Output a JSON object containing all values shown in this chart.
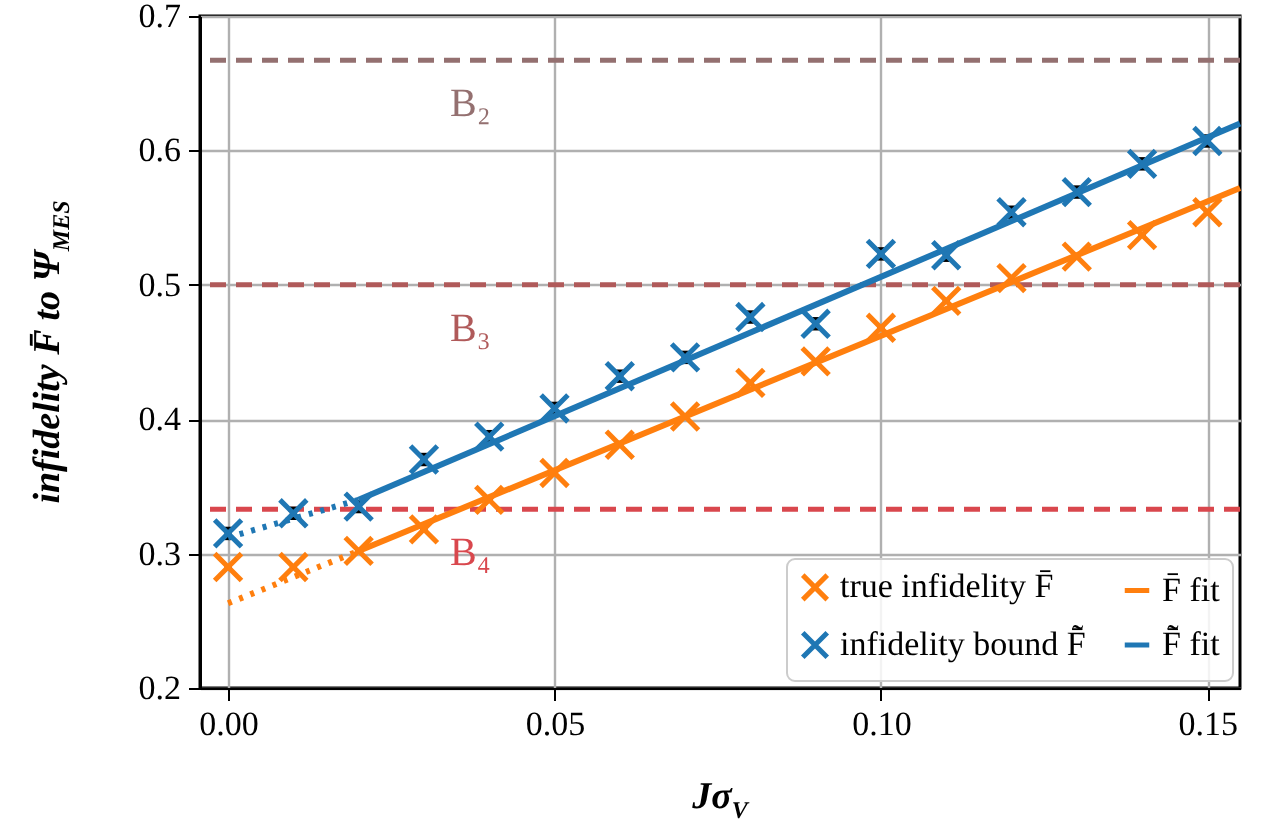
{
  "chart_data": {
    "type": "scatter",
    "xlabel": "Jσ$_{V}$",
    "ylabel": "infidelity F̄ to Ψ$_{MES}$",
    "xlim": [
      -0.0043,
      0.155
    ],
    "ylim": [
      0.2,
      0.7
    ],
    "xticks": [
      {
        "value": 0,
        "label": "0.00"
      },
      0.05,
      {
        "value": 0.1,
        "label": "0.10"
      },
      0.15
    ],
    "yticks": [
      0.2,
      0.3,
      0.4,
      0.5,
      0.6,
      0.7
    ],
    "grid": true,
    "legend": "bottom right",
    "marker": "cross",
    "series": [
      {
        "name": "true infidelity F̄",
        "color": "#ff7f0e",
        "x": [
          0,
          0.01,
          0.02,
          0.03,
          0.04,
          0.05,
          0.06,
          0.07,
          0.08,
          0.09,
          0.1,
          0.11,
          0.12,
          0.13,
          0.14,
          0.15
        ],
        "values": [
          0.29,
          0.29,
          0.302,
          0.318,
          0.34,
          0.36,
          0.381,
          0.402,
          0.427,
          0.443,
          0.468,
          0.488,
          0.505,
          0.521,
          0.537,
          0.554
        ],
        "errors": [
          0.002,
          0.002,
          0.002,
          0.002,
          0.002,
          0.002,
          0.002,
          0.002,
          0.002,
          0.002,
          0.002,
          0.002,
          0.002,
          0.002,
          0.002,
          0.002
        ]
      },
      {
        "name": "infidelity bound F̃̄",
        "color": "#1f77b4",
        "x": [
          0,
          0.01,
          0.02,
          0.03,
          0.04,
          0.05,
          0.06,
          0.07,
          0.08,
          0.09,
          0.1,
          0.11,
          0.12,
          0.13,
          0.14,
          0.15
        ],
        "values": [
          0.315,
          0.33,
          0.335,
          0.37,
          0.387,
          0.408,
          0.432,
          0.446,
          0.476,
          0.471,
          0.523,
          0.522,
          0.554,
          0.569,
          0.59,
          0.607
        ],
        "errors": [
          0.005,
          0.005,
          0.005,
          0.005,
          0.005,
          0.005,
          0.005,
          0.005,
          0.005,
          0.005,
          0.005,
          0.005,
          0.005,
          0.005,
          0.005,
          0.005
        ]
      },
      {
        "name": "F̄ fit",
        "type": "line",
        "marker": "none",
        "color": "#ff7f0e",
        "line_style": "solid",
        "x": [
          0.02,
          0.155
        ],
        "values": [
          0.302,
          0.572
        ]
      },
      {
        "name": "F̃̄ fit",
        "type": "line",
        "marker": "none",
        "color": "#1f77b4",
        "line_style": "solid",
        "x": [
          0.02,
          0.155
        ],
        "values": [
          0.34,
          0.62
        ]
      },
      {
        "type": "line",
        "marker": "none",
        "color": "#ff7f0e",
        "line_style": "dotted",
        "x": [
          0,
          0.02
        ],
        "values": [
          0.263,
          0.302
        ]
      },
      {
        "type": "line",
        "marker": "none",
        "color": "#1f77b4",
        "line_style": "dotted",
        "x": [
          0,
          0.02
        ],
        "values": [
          0.312,
          0.34
        ]
      }
    ],
    "ref_lines": [
      {
        "axis": "y",
        "value": 0.667,
        "label": "B₂",
        "color": "#947070",
        "line_style": "dashed"
      },
      {
        "axis": "y",
        "value": 0.5,
        "label": "B₃",
        "color": "#b05a5a",
        "line_style": "dashed"
      },
      {
        "axis": "y",
        "value": 0.333,
        "label": "B₄",
        "color": "#d9474d",
        "line_style": "dashed"
      }
    ]
  }
}
